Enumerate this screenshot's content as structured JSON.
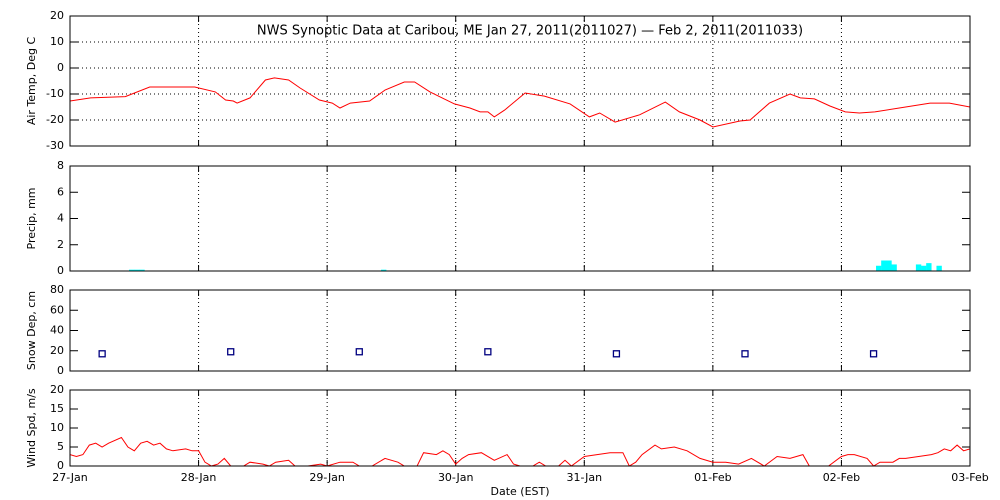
{
  "chart_data": [
    {
      "type": "line",
      "title": "NWS Synoptic Data at Caribou, ME   Jan 27, 2011(2011027) — Feb  2, 2011(2011033)",
      "ylabel": "Air Temp, Deg C",
      "color": "#ff0000",
      "grid": "both",
      "ylim": [
        -30,
        20
      ],
      "yticks": [
        -30,
        -20,
        -10,
        0,
        10,
        20
      ],
      "x": [
        0,
        0.16,
        0.43,
        0.62,
        0.97,
        1.13,
        1.21,
        1.27,
        1.3,
        1.4,
        1.52,
        1.59,
        1.7,
        1.79,
        1.94,
        2.04,
        2.1,
        2.18,
        2.33,
        2.45,
        2.6,
        2.68,
        2.8,
        2.99,
        3.11,
        3.19,
        3.25,
        3.3,
        3.38,
        3.54,
        3.69,
        3.89,
        4.04,
        4.12,
        4.24,
        4.43,
        4.63,
        4.74,
        4.9,
        5.0,
        5.21,
        5.29,
        5.44,
        5.6,
        5.68,
        5.79,
        5.91,
        6.03,
        6.14,
        6.26,
        6.45,
        6.69,
        6.84,
        7.0
      ],
      "values": [
        -12.7,
        -11.5,
        -11,
        -7.3,
        -7.3,
        -9.2,
        -12.3,
        -12.7,
        -13.5,
        -11.5,
        -4.6,
        -3.8,
        -4.6,
        -7.7,
        -12.3,
        -13.5,
        -15.4,
        -13.5,
        -12.7,
        -8.5,
        -5.4,
        -5.4,
        -9.2,
        -13.8,
        -15.4,
        -16.9,
        -16.9,
        -18.8,
        -16.2,
        -9.6,
        -10.8,
        -13.8,
        -18.8,
        -17.3,
        -20.8,
        -18,
        -13.1,
        -16.9,
        -20,
        -22.7,
        -20.4,
        -20,
        -13.5,
        -10,
        -11.5,
        -11.9,
        -14.6,
        -16.9,
        -17.3,
        -16.9,
        -15.4,
        -13.5,
        -13.5,
        -15
      ]
    },
    {
      "type": "bar",
      "ylabel": "Precip, mm",
      "color": "#00ffff",
      "grid": "x",
      "ylim": [
        0,
        8
      ],
      "yticks": [
        0,
        2,
        4,
        6,
        8
      ],
      "x": [
        0.48,
        0.52,
        0.56,
        2.44,
        6.29,
        6.33,
        6.37,
        6.41,
        6.6,
        6.64,
        6.68,
        6.76
      ],
      "values": [
        0.1,
        0.1,
        0.1,
        0.1,
        0.4,
        0.8,
        0.8,
        0.5,
        0.5,
        0.4,
        0.6,
        0.4
      ]
    },
    {
      "type": "scatter",
      "ylabel": "Snow Dep, cm",
      "color": "#000080",
      "grid": "x",
      "ylim": [
        0,
        80
      ],
      "yticks": [
        0,
        20,
        40,
        60,
        80
      ],
      "x": [
        0.25,
        1.25,
        2.25,
        3.25,
        4.25,
        5.25,
        6.25
      ],
      "values": [
        17,
        19,
        19,
        19,
        17,
        17,
        17
      ]
    },
    {
      "type": "line",
      "ylabel": "Wind Spd, m/s",
      "xlabel": "Date (EST)",
      "color": "#ff0000",
      "grid": "x",
      "ylim": [
        0,
        20
      ],
      "yticks": [
        0,
        5,
        10,
        15,
        20
      ],
      "xlim": [
        0,
        7
      ],
      "xticks": [
        {
          "value": 0,
          "label": "27-Jan"
        },
        {
          "value": 1,
          "label": "28-Jan"
        },
        {
          "value": 2,
          "label": "29-Jan"
        },
        {
          "value": 3,
          "label": "30-Jan"
        },
        {
          "value": 4,
          "label": "31-Jan"
        },
        {
          "value": 5,
          "label": "01-Feb"
        },
        {
          "value": 6,
          "label": "02-Feb"
        },
        {
          "value": 7,
          "label": "03-Feb"
        }
      ],
      "x": [
        0,
        0.05,
        0.1,
        0.15,
        0.2,
        0.25,
        0.3,
        0.4,
        0.45,
        0.5,
        0.55,
        0.6,
        0.65,
        0.7,
        0.75,
        0.8,
        0.9,
        0.95,
        1.0,
        1.05,
        1.1,
        1.15,
        1.2,
        1.25,
        1.35,
        1.4,
        1.5,
        1.55,
        1.6,
        1.7,
        1.75,
        1.85,
        1.95,
        2.0,
        2.1,
        2.2,
        2.25,
        2.35,
        2.45,
        2.55,
        2.6,
        2.7,
        2.75,
        2.85,
        2.9,
        2.95,
        3.0,
        3.05,
        3.1,
        3.2,
        3.3,
        3.4,
        3.45,
        3.5,
        3.6,
        3.65,
        3.7,
        3.8,
        3.85,
        3.9,
        4.0,
        4.1,
        4.2,
        4.3,
        4.35,
        4.4,
        4.45,
        4.55,
        4.6,
        4.7,
        4.8,
        4.9,
        5.0,
        5.1,
        5.2,
        5.3,
        5.4,
        5.5,
        5.6,
        5.7,
        5.75,
        5.8,
        5.9,
        6.0,
        6.05,
        6.1,
        6.2,
        6.25,
        6.3,
        6.4,
        6.45,
        6.5,
        6.6,
        6.7,
        6.75,
        6.8,
        6.85,
        6.9,
        6.95,
        7.0
      ],
      "values": [
        3,
        2.5,
        3,
        5.5,
        6,
        5,
        6,
        7.5,
        5,
        4,
        6,
        6.5,
        5.5,
        6,
        4.5,
        4,
        4.5,
        4,
        4,
        1,
        0,
        0.5,
        2,
        0,
        0,
        1,
        0.5,
        0,
        1,
        1.5,
        0,
        0,
        0.5,
        0,
        1,
        1,
        0,
        0,
        2,
        1,
        0,
        0,
        3.5,
        3,
        4,
        3,
        0.5,
        2,
        3,
        3.5,
        1.5,
        3,
        0.5,
        0,
        0,
        1,
        0,
        0,
        1.5,
        0,
        2.5,
        3,
        3.5,
        3.5,
        0,
        1,
        3,
        5.5,
        4.5,
        5,
        4,
        2,
        1,
        1,
        0.5,
        2,
        0,
        2.5,
        2,
        3,
        0,
        0,
        0,
        2.5,
        3,
        3,
        2,
        0,
        1,
        1,
        2,
        2,
        2.5,
        3,
        3.5,
        4.5,
        4,
        5.5,
        4,
        4.5
      ]
    }
  ]
}
